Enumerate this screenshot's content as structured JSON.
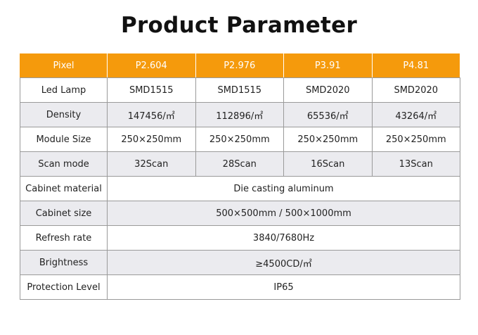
{
  "title": "Product Parameter",
  "header": [
    "Pixel",
    "P2.604",
    "P2.976",
    "P3.91",
    "P4.81"
  ],
  "rows": [
    {
      "label": "Led Lamp",
      "values": [
        "SMD1515",
        "SMD1515",
        "SMD2020",
        "SMD2020"
      ]
    },
    {
      "label": "Density",
      "values": [
        "147456/㎡",
        "112896/㎡",
        "65536/㎡",
        "43264/㎡"
      ]
    },
    {
      "label": "Module Size",
      "values": [
        "250×250mm",
        "250×250mm",
        "250×250mm",
        "250×250mm"
      ]
    },
    {
      "label": "Scan mode",
      "values": [
        "32Scan",
        "28Scan",
        "16Scan",
        "13Scan"
      ]
    }
  ],
  "merged_rows": [
    {
      "label": "Cabinet material",
      "value": "Die casting aluminum"
    },
    {
      "label": "Cabinet size",
      "value": "500×500mm / 500×1000mm"
    },
    {
      "label": "Refresh rate",
      "value": "3840/7680Hz"
    },
    {
      "label": "Brightness",
      "value": "≥4500CD/㎡"
    },
    {
      "label": "Protection Level",
      "value": "IP65"
    }
  ],
  "colors": {
    "header": "#f59a0c",
    "alt_row": "#ebebef"
  }
}
